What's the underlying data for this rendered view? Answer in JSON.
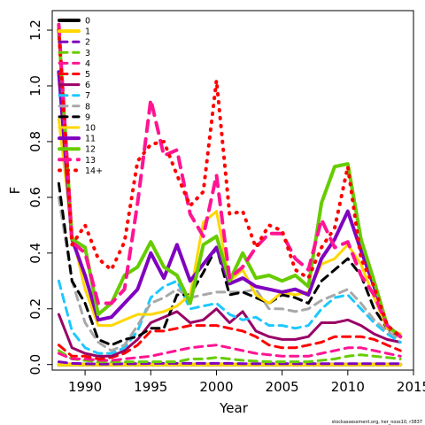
{
  "chart_data": {
    "type": "line",
    "xlabel": "Year",
    "ylabel": "F",
    "xlim": [
      1987.5,
      2015
    ],
    "ylim": [
      -0.02,
      1.27
    ],
    "x_ticks": [
      "1990",
      "1995",
      "2000",
      "2005",
      "2010",
      "2015"
    ],
    "y_ticks": [
      "0.0",
      "0.2",
      "0.4",
      "0.6",
      "0.8",
      "1.0",
      "1.2"
    ],
    "legend_position": "top-left",
    "credit": "stockassessment.org, her_noss10, r3837",
    "x": [
      1988,
      1989,
      1990,
      1991,
      1992,
      1993,
      1994,
      1995,
      1996,
      1997,
      1998,
      1999,
      2000,
      2001,
      2002,
      2003,
      2004,
      2005,
      2006,
      2007,
      2008,
      2009,
      2010,
      2011,
      2012,
      2013,
      2014
    ],
    "series": [
      {
        "name": "0",
        "color": "#000000",
        "dash": "solid",
        "width": 4,
        "values": [
          0,
          0,
          0,
          0,
          0,
          0,
          0,
          0,
          0,
          0,
          0,
          0,
          0,
          0,
          0,
          0,
          0,
          0,
          0,
          0,
          0,
          0,
          0,
          0,
          0,
          0,
          0
        ]
      },
      {
        "name": "1",
        "color": "#ffd700",
        "dash": "solid",
        "width": 4,
        "values": [
          0,
          0,
          0,
          0,
          0,
          0,
          0,
          0,
          0,
          0,
          0,
          0,
          0,
          0,
          0,
          0,
          0,
          0,
          0,
          0,
          0,
          0,
          0,
          0,
          0,
          0,
          0
        ]
      },
      {
        "name": "2",
        "color": "#8000c0",
        "dash": "dash",
        "width": 3,
        "values": [
          0.01,
          0.004,
          0.003,
          0.002,
          0.002,
          0.003,
          0.003,
          0.004,
          0.004,
          0.004,
          0.004,
          0.004,
          0.004,
          0.004,
          0.003,
          0.003,
          0.003,
          0.003,
          0.003,
          0.003,
          0.003,
          0.003,
          0.003,
          0.003,
          0.003,
          0.003,
          0.003
        ]
      },
      {
        "name": "3",
        "color": "#66cc00",
        "dash": "dash",
        "width": 3,
        "values": [
          0.05,
          0.02,
          0.015,
          0.01,
          0.01,
          0.01,
          0.01,
          0.01,
          0.01,
          0.01,
          0.02,
          0.02,
          0.025,
          0.02,
          0.015,
          0.012,
          0.01,
          0.01,
          0.01,
          0.01,
          0.015,
          0.02,
          0.03,
          0.035,
          0.03,
          0.025,
          0.02
        ]
      },
      {
        "name": "4",
        "color": "#ff1493",
        "dash": "dash",
        "width": 3,
        "values": [
          0.04,
          0.02,
          0.02,
          0.015,
          0.015,
          0.02,
          0.025,
          0.03,
          0.04,
          0.05,
          0.06,
          0.065,
          0.07,
          0.06,
          0.05,
          0.04,
          0.035,
          0.03,
          0.03,
          0.03,
          0.04,
          0.05,
          0.06,
          0.06,
          0.05,
          0.04,
          0.03
        ]
      },
      {
        "name": "5",
        "color": "#ff0000",
        "dash": "dash",
        "width": 3,
        "values": [
          0.07,
          0.03,
          0.03,
          0.02,
          0.025,
          0.04,
          0.07,
          0.12,
          0.12,
          0.13,
          0.14,
          0.14,
          0.14,
          0.13,
          0.12,
          0.1,
          0.07,
          0.06,
          0.06,
          0.07,
          0.08,
          0.1,
          0.1,
          0.1,
          0.09,
          0.07,
          0.05
        ]
      },
      {
        "name": "6",
        "color": "#990066",
        "dash": "solid",
        "width": 3,
        "values": [
          0.18,
          0.06,
          0.04,
          0.03,
          0.03,
          0.05,
          0.09,
          0.15,
          0.17,
          0.19,
          0.15,
          0.16,
          0.2,
          0.15,
          0.19,
          0.12,
          0.1,
          0.09,
          0.09,
          0.1,
          0.15,
          0.15,
          0.16,
          0.14,
          0.11,
          0.09,
          0.08
        ]
      },
      {
        "name": "7",
        "color": "#1ec8ff",
        "dash": "dash",
        "width": 3,
        "values": [
          0.3,
          0.12,
          0.06,
          0.04,
          0.04,
          0.06,
          0.12,
          0.24,
          0.28,
          0.3,
          0.2,
          0.21,
          0.22,
          0.18,
          0.16,
          0.17,
          0.14,
          0.14,
          0.13,
          0.14,
          0.2,
          0.24,
          0.25,
          0.2,
          0.15,
          0.11,
          0.08
        ]
      },
      {
        "name": "8",
        "color": "#a8a8a8",
        "dash": "dash",
        "width": 3,
        "values": [
          0.6,
          0.3,
          0.15,
          0.08,
          0.05,
          0.07,
          0.14,
          0.22,
          0.24,
          0.27,
          0.24,
          0.25,
          0.26,
          0.26,
          0.26,
          0.27,
          0.2,
          0.2,
          0.19,
          0.2,
          0.23,
          0.25,
          0.27,
          0.22,
          0.16,
          0.12,
          0.09
        ]
      },
      {
        "name": "9",
        "color": "#000000",
        "dash": "dash",
        "width": 3,
        "values": [
          0.65,
          0.3,
          0.22,
          0.09,
          0.07,
          0.09,
          0.1,
          0.13,
          0.13,
          0.25,
          0.25,
          0.33,
          0.42,
          0.25,
          0.26,
          0.24,
          0.22,
          0.25,
          0.24,
          0.22,
          0.3,
          0.34,
          0.38,
          0.32,
          0.2,
          0.13,
          0.1
        ]
      },
      {
        "name": "10",
        "color": "#ffd700",
        "dash": "solid",
        "width": 3,
        "values": [
          0.88,
          0.47,
          0.27,
          0.14,
          0.14,
          0.16,
          0.18,
          0.18,
          0.19,
          0.21,
          0.25,
          0.51,
          0.55,
          0.3,
          0.34,
          0.25,
          0.22,
          0.26,
          0.25,
          0.26,
          0.36,
          0.38,
          0.43,
          0.36,
          0.24,
          0.13,
          0.11
        ]
      },
      {
        "name": "11",
        "color": "#8000c0",
        "dash": "solid",
        "width": 4,
        "values": [
          1.05,
          0.45,
          0.32,
          0.16,
          0.17,
          0.22,
          0.27,
          0.4,
          0.31,
          0.43,
          0.3,
          0.36,
          0.42,
          0.29,
          0.31,
          0.28,
          0.27,
          0.26,
          0.27,
          0.25,
          0.38,
          0.45,
          0.55,
          0.41,
          0.28,
          0.14,
          0.1
        ]
      },
      {
        "name": "12",
        "color": "#66cc00",
        "dash": "solid",
        "width": 4,
        "values": [
          1.2,
          0.45,
          0.42,
          0.18,
          0.22,
          0.32,
          0.35,
          0.44,
          0.35,
          0.32,
          0.22,
          0.43,
          0.46,
          0.3,
          0.4,
          0.31,
          0.32,
          0.3,
          0.32,
          0.28,
          0.58,
          0.71,
          0.72,
          0.45,
          0.3,
          0.14,
          0.1
        ]
      },
      {
        "name": "13",
        "color": "#ff1493",
        "dash": "dash",
        "width": 4,
        "values": [
          1.22,
          0.44,
          0.4,
          0.22,
          0.22,
          0.27,
          0.58,
          0.95,
          0.75,
          0.77,
          0.54,
          0.46,
          0.68,
          0.31,
          0.35,
          0.42,
          0.47,
          0.47,
          0.38,
          0.34,
          0.52,
          0.42,
          0.44,
          0.32,
          0.25,
          0.14,
          0.1
        ]
      },
      {
        "name": "14+",
        "color": "#ff0000",
        "dash": "dot",
        "width": 4,
        "values": [
          1.2,
          0.43,
          0.5,
          0.38,
          0.34,
          0.44,
          0.73,
          0.79,
          0.8,
          0.68,
          0.57,
          0.62,
          1.02,
          0.54,
          0.55,
          0.42,
          0.5,
          0.48,
          0.34,
          0.31,
          0.42,
          0.49,
          0.71,
          0.38,
          0.28,
          0.14,
          0.1
        ]
      }
    ]
  }
}
